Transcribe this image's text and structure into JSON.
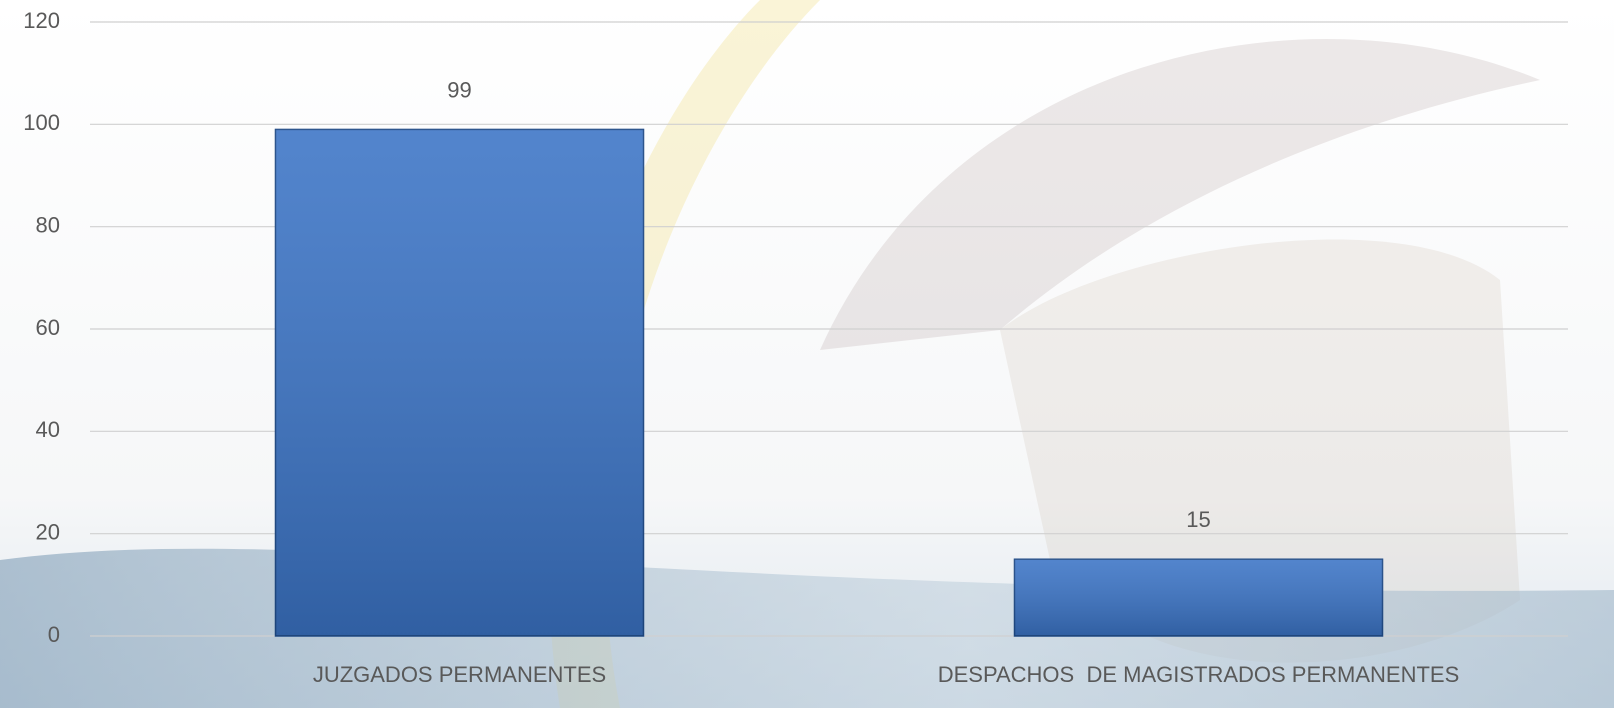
{
  "chart_data": {
    "type": "bar",
    "categories": [
      "JUZGADOS PERMANENTES",
      "DESPACHOS  DE MAGISTRADOS PERMANENTES"
    ],
    "values": [
      99,
      15
    ],
    "color": "#3b74c6",
    "ylim": [
      0,
      120
    ],
    "yticks": [
      0,
      20,
      40,
      60,
      80,
      100,
      120
    ],
    "grid": true
  }
}
